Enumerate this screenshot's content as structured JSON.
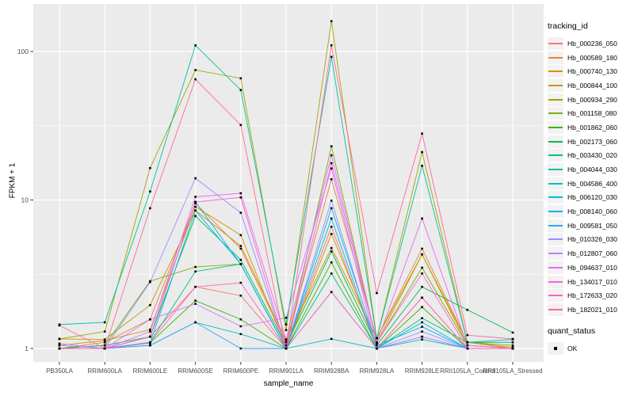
{
  "figure": {
    "background": "#FFFFFF",
    "panel_background": "#EBEBEB",
    "grid_color": "#FFFFFF",
    "tick_color": "#333333",
    "tick_label_color": "#4D4D4D",
    "point_color": "#000000"
  },
  "chart_data": {
    "type": "line",
    "title": "",
    "xlabel": "sample_name",
    "ylabel": "FPKM + 1",
    "y_scale": "log10",
    "y_ticks": [
      1,
      10,
      100
    ],
    "y_tick_labels": [
      "1",
      "10",
      "100"
    ],
    "ylim": [
      0.95,
      200
    ],
    "legend_position": "right",
    "grid": true,
    "categories": [
      "PB350LA",
      "RRIM600LA",
      "RRIM600LE",
      "RRIM600SE",
      "RRIM600PE",
      "RRIM901LA",
      "RRIM928BA",
      "RRIM928LA",
      "RRIM928LE",
      "RRII105LA_Control",
      "RRII105LA_Stressed"
    ],
    "series": [
      {
        "name": "Hb_000236_050",
        "color": "#F8766D",
        "values": [
          1.0,
          1.0,
          1.2,
          2.6,
          2.27,
          1.0,
          6.6,
          1.0,
          2.2,
          1.0,
          1.0
        ]
      },
      {
        "name": "Hb_000589_180",
        "color": "#EA8331",
        "values": [
          1.0,
          1.1,
          1.57,
          9.5,
          4.7,
          1.1,
          13.8,
          1.17,
          4.7,
          1.1,
          1.0
        ]
      },
      {
        "name": "Hb_000740_130",
        "color": "#D89000",
        "values": [
          1.05,
          1.13,
          1.34,
          9.0,
          5.8,
          1.0,
          5.9,
          1.09,
          4.3,
          1.05,
          1.0
        ]
      },
      {
        "name": "Hb_000844_100",
        "color": "#C09B00",
        "values": [
          1.16,
          1.15,
          1.96,
          8.5,
          4.9,
          1.14,
          4.75,
          1.17,
          4.3,
          1.1,
          1.02
        ]
      },
      {
        "name": "Hb_000934_290",
        "color": "#A3A500",
        "values": [
          1.16,
          1.3,
          16.4,
          75,
          66,
          1.33,
          160,
          1.17,
          21,
          1.1,
          1.05
        ]
      },
      {
        "name": "Hb_001158_080",
        "color": "#7CAE00",
        "values": [
          1.0,
          1.05,
          2.84,
          3.54,
          3.7,
          1.0,
          23,
          1.09,
          3.5,
          1.05,
          1.0
        ]
      },
      {
        "name": "Hb_001862_060",
        "color": "#39B600",
        "values": [
          1.0,
          1.0,
          1.09,
          2.1,
          1.57,
          1.0,
          3.8,
          1.0,
          1.9,
          1.0,
          1.0
        ]
      },
      {
        "name": "Hb_002173_060",
        "color": "#00BB4E",
        "values": [
          1.0,
          1.05,
          1.2,
          7.8,
          3.95,
          1.05,
          4.5,
          1.05,
          2.6,
          1.82,
          1.28
        ]
      },
      {
        "name": "Hb_003430_020",
        "color": "#00BF7D",
        "values": [
          1.0,
          1.0,
          1.1,
          3.3,
          3.7,
          1.0,
          3.2,
          1.0,
          1.6,
          1.1,
          1.1
        ]
      },
      {
        "name": "Hb_004044_030",
        "color": "#00C1A3",
        "values": [
          1.45,
          1.5,
          11.4,
          110,
          55,
          1.45,
          92,
          1.17,
          17,
          1.1,
          1.15
        ]
      },
      {
        "name": "Hb_004586_400",
        "color": "#00BFC4",
        "values": [
          1.0,
          1.0,
          1.05,
          1.5,
          1.25,
          1.0,
          1.16,
          1.0,
          1.15,
          1.0,
          1.0
        ]
      },
      {
        "name": "Hb_006120_030",
        "color": "#00BAE0",
        "values": [
          1.0,
          1.0,
          1.09,
          8.5,
          3.7,
          1.0,
          7.5,
          1.0,
          1.5,
          1.0,
          1.0
        ]
      },
      {
        "name": "Hb_008140_060",
        "color": "#00B0F6",
        "values": [
          1.0,
          1.0,
          1.2,
          9.7,
          3.7,
          1.0,
          8.8,
          1.05,
          1.4,
          1.0,
          1.0
        ]
      },
      {
        "name": "Hb_009581_050",
        "color": "#35A2FF",
        "values": [
          1.0,
          1.0,
          1.05,
          1.5,
          1.0,
          1.0,
          2.4,
          1.0,
          1.2,
          1.0,
          1.0
        ]
      },
      {
        "name": "Hb_010326_030",
        "color": "#9590FF",
        "values": [
          1.08,
          1.0,
          2.8,
          14,
          8.2,
          1.0,
          9.9,
          1.0,
          1.3,
          1.0,
          1.0
        ]
      },
      {
        "name": "Hb_012807_060",
        "color": "#C77CFF",
        "values": [
          1.05,
          1.0,
          1.57,
          2.0,
          1.41,
          1.61,
          16.3,
          1.0,
          1.2,
          1.0,
          1.0
        ]
      },
      {
        "name": "Hb_094637_010",
        "color": "#E76BF3",
        "values": [
          1.0,
          1.0,
          1.3,
          10.5,
          11.1,
          1.15,
          20,
          1.1,
          7.5,
          1.05,
          1.0
        ]
      },
      {
        "name": "Hb_134017_010",
        "color": "#FA62DB",
        "values": [
          1.0,
          1.0,
          1.2,
          9.7,
          10.4,
          1.0,
          17.7,
          1.1,
          3.2,
          1.0,
          1.0
        ]
      },
      {
        "name": "Hb_172633_020",
        "color": "#FF62BC",
        "values": [
          1.0,
          1.0,
          1.1,
          2.6,
          2.77,
          1.0,
          2.4,
          1.0,
          2.2,
          1.0,
          1.0
        ]
      },
      {
        "name": "Hb_182021_010",
        "color": "#FF6A98",
        "values": [
          1.43,
          1.0,
          8.8,
          65,
          32,
          1.0,
          110,
          2.36,
          28,
          1.23,
          1.16
        ]
      }
    ],
    "legend": {
      "series_title": "tracking_id",
      "status_title": "quant_status",
      "status_label": "OK"
    }
  }
}
